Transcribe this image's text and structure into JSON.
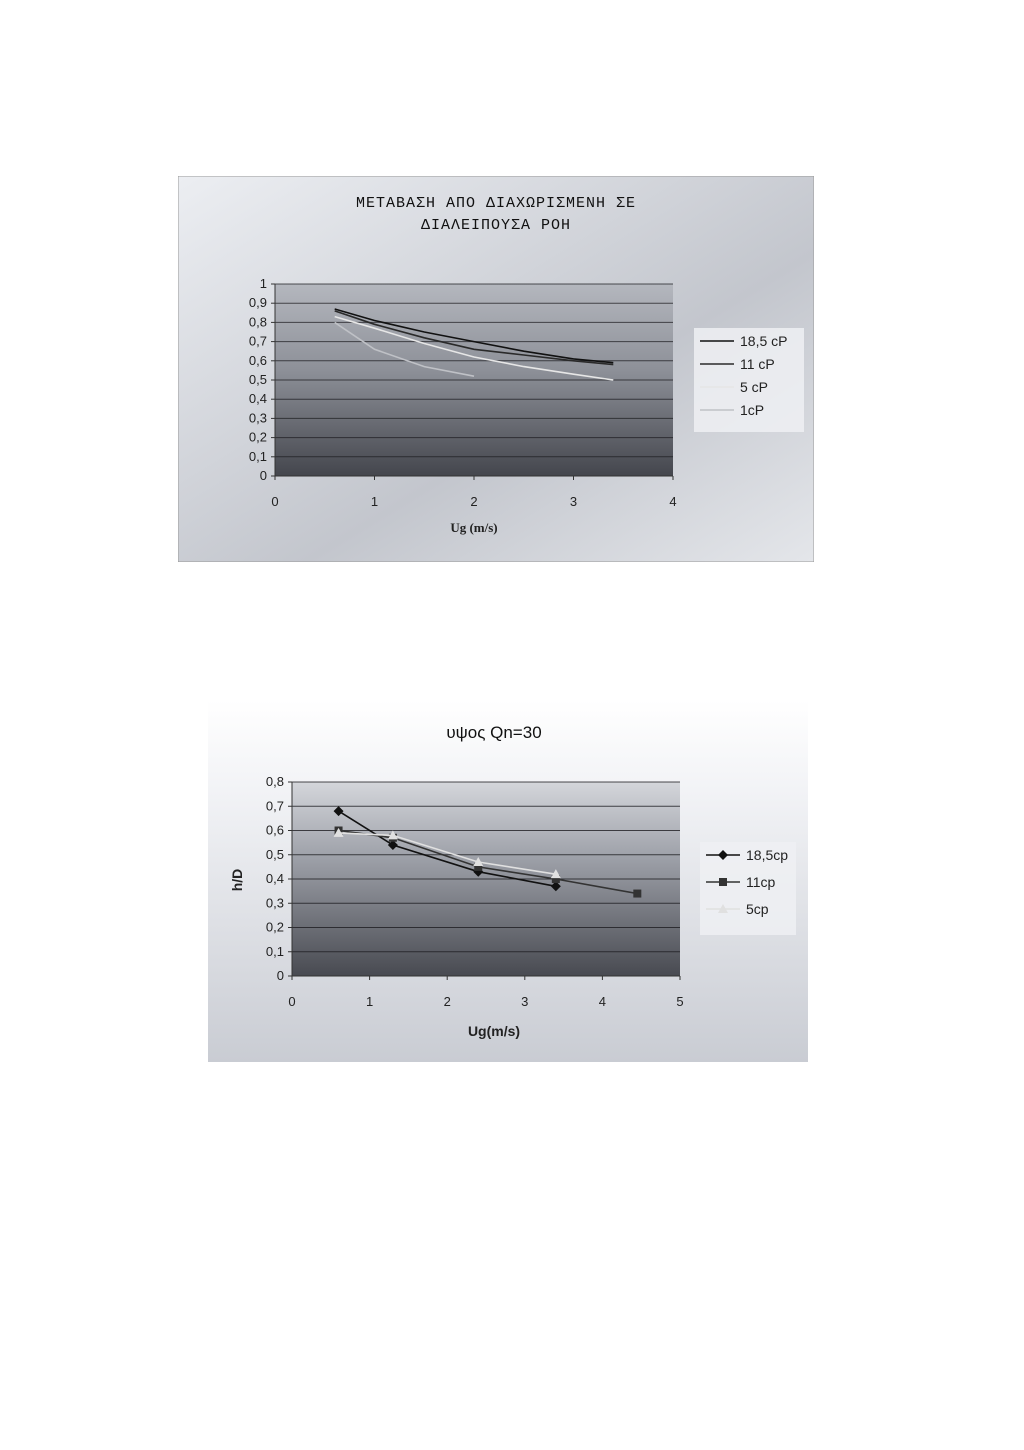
{
  "colors": {
    "panel_light": "#e9ecf1",
    "panel_mid": "#b9bcc4",
    "plot_top": "#a9acb4",
    "plot_bottom": "#4a4c54",
    "grid": "#2a2a2e"
  },
  "chart_data": [
    {
      "type": "line",
      "title": "ΜΕΤΑΒΑΣΗ ΑΠΟ ΔΙΑΧΩΡΙΣΜΕΝΗ ΣΕ ΔΙΑΛΕΙΠΟΥΣΑ ΡΟΗ",
      "title_lines": [
        "ΜΕΤΑΒΑΣΗ ΑΠΟ ΔΙΑΧΩΡΙΣΜΕΝΗ ΣΕ",
        "ΔΙΑΛΕΙΠΟΥΣΑ ΡΟΗ"
      ],
      "xlabel": "Ug (m/s)",
      "ylabel": "",
      "xlim": [
        0,
        4
      ],
      "ylim": [
        0,
        1
      ],
      "x_ticks": [
        "0",
        "1",
        "2",
        "3",
        "4"
      ],
      "y_ticks": [
        "0",
        "0,1",
        "0,2",
        "0,3",
        "0,4",
        "0,5",
        "0,6",
        "0,7",
        "0,8",
        "0,9",
        "1"
      ],
      "grid": true,
      "legend_position": "right",
      "series": [
        {
          "name": "18,5 cP",
          "color": "#111111",
          "x": [
            0.6,
            1.0,
            1.5,
            2.0,
            2.5,
            3.0,
            3.4
          ],
          "y": [
            0.87,
            0.81,
            0.75,
            0.7,
            0.65,
            0.61,
            0.59
          ]
        },
        {
          "name": "11 cP",
          "color": "#2a2a2a",
          "x": [
            0.6,
            1.0,
            1.5,
            2.0,
            2.5,
            3.0,
            3.4
          ],
          "y": [
            0.86,
            0.79,
            0.72,
            0.66,
            0.63,
            0.6,
            0.58
          ]
        },
        {
          "name": "5 cP",
          "color": "#e6e6e6",
          "x": [
            0.6,
            1.0,
            1.5,
            2.0,
            2.5,
            3.0,
            3.4
          ],
          "y": [
            0.83,
            0.77,
            0.69,
            0.62,
            0.57,
            0.53,
            0.5
          ]
        },
        {
          "name": "1cP",
          "color": "#bfc1c6",
          "x": [
            0.6,
            1.0,
            1.5,
            2.0
          ],
          "y": [
            0.8,
            0.66,
            0.57,
            0.52
          ]
        }
      ]
    },
    {
      "type": "line",
      "title": "υψος Qn=30",
      "xlabel": "Ug(m/s)",
      "ylabel": "h/D",
      "xlim": [
        0,
        5
      ],
      "ylim": [
        0,
        0.8
      ],
      "x_ticks": [
        "0",
        "1",
        "2",
        "3",
        "4",
        "5"
      ],
      "y_ticks": [
        "0",
        "0,1",
        "0,2",
        "0,3",
        "0,4",
        "0,5",
        "0,6",
        "0,7",
        "0,8"
      ],
      "grid": true,
      "legend_position": "right",
      "series": [
        {
          "name": "18,5cp",
          "color": "#111111",
          "marker": "diamond",
          "x": [
            0.6,
            1.3,
            2.4,
            3.4
          ],
          "y": [
            0.68,
            0.54,
            0.43,
            0.37
          ]
        },
        {
          "name": "11cp",
          "color": "#333333",
          "marker": "square",
          "x": [
            0.6,
            1.3,
            2.4,
            3.4,
            4.45
          ],
          "y": [
            0.6,
            0.57,
            0.45,
            0.4,
            0.34
          ]
        },
        {
          "name": "5cp",
          "color": "#e0e0e0",
          "marker": "triangle",
          "x": [
            0.6,
            1.3,
            2.4,
            3.4
          ],
          "y": [
            0.59,
            0.58,
            0.47,
            0.42
          ]
        }
      ]
    }
  ]
}
